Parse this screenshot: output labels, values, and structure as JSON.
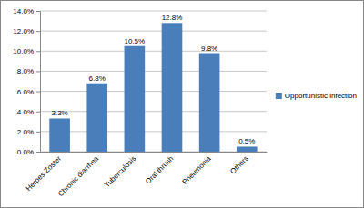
{
  "chart_data": {
    "type": "bar",
    "categories": [
      "Herpes Zoster",
      "Chronic diarrhea",
      "Tuberculosis",
      "Oral thrush",
      "Pneumonia",
      "Others"
    ],
    "series": [
      {
        "name": "Opportunistic infection",
        "color": "#4a7ebb",
        "values": [
          3.3,
          6.8,
          10.5,
          12.8,
          9.8,
          0.5
        ],
        "value_labels": [
          "3.3%",
          "6.8%",
          "10.5%",
          "12.8%",
          "9.8%",
          "0.5%"
        ]
      }
    ],
    "ylim": [
      0,
      14
    ],
    "yticks": [
      {
        "value": 0,
        "label": "0.0%"
      },
      {
        "value": 2,
        "label": "2.0%"
      },
      {
        "value": 4,
        "label": "4.0%"
      },
      {
        "value": 6,
        "label": "6.0%"
      },
      {
        "value": 8,
        "label": "8.0%"
      },
      {
        "value": 10,
        "label": "10.0%"
      },
      {
        "value": 12,
        "label": "12.0%"
      },
      {
        "value": 14,
        "label": "14.0%"
      }
    ],
    "grid": true,
    "data_labels": true,
    "legend": "right"
  }
}
